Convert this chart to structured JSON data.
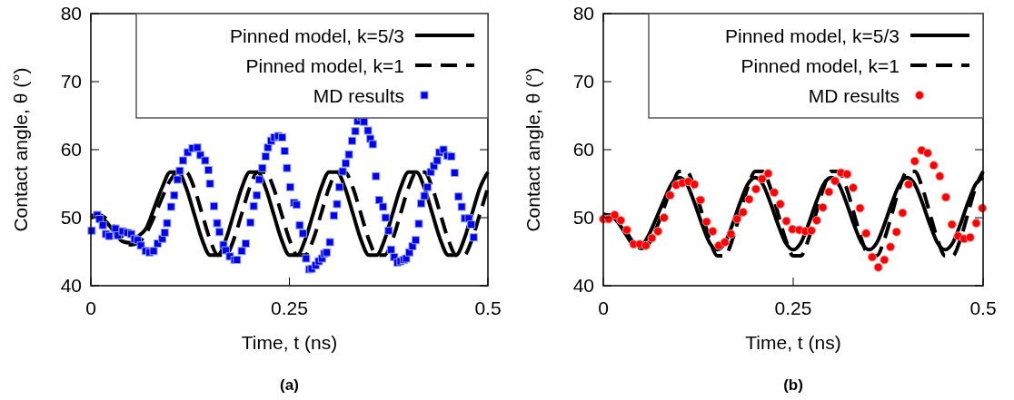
{
  "chart_data": [
    {
      "type": "line",
      "xlabel": "Time, t (ns)",
      "ylabel": "Contact angle, θ (°)",
      "annotations": [
        "(a)"
      ],
      "xlim": [
        0,
        0.5
      ],
      "ylim": [
        40,
        80
      ],
      "xticks": [
        0,
        0.25,
        0.5
      ],
      "yticks": [
        40,
        50,
        60,
        70,
        80
      ],
      "grid": false,
      "legend": "top right",
      "series": [
        {
          "name": "Pinned model, k=5/3",
          "type": "line",
          "line_style": "solid",
          "marker": "none",
          "color": "#000000",
          "x": [
            0,
            0.01,
            0.02,
            0.03,
            0.04,
            0.05,
            0.06,
            0.07,
            0.08,
            0.09,
            0.1,
            0.11,
            0.12,
            0.13,
            0.14,
            0.15,
            0.16,
            0.17,
            0.18,
            0.19,
            0.2,
            0.21,
            0.22,
            0.23,
            0.24,
            0.25,
            0.26,
            0.27,
            0.28,
            0.29,
            0.3,
            0.31,
            0.32,
            0.33,
            0.34,
            0.35,
            0.36,
            0.37,
            0.38,
            0.39,
            0.4,
            0.41,
            0.42,
            0.43,
            0.44,
            0.45,
            0.46,
            0.47,
            0.48,
            0.49,
            0.5
          ],
          "values": [
            50.0,
            50.2,
            49.3,
            47.8,
            46.5,
            46.3,
            47.3,
            48.5,
            51.5,
            54.5,
            56.7,
            56.7,
            54.4,
            50.6,
            46.8,
            44.5,
            44.5,
            46.8,
            50.6,
            54.4,
            56.7,
            56.7,
            54.4,
            50.6,
            46.8,
            44.5,
            44.5,
            46.8,
            50.6,
            54.4,
            56.7,
            56.7,
            54.4,
            50.6,
            46.8,
            44.5,
            44.5,
            46.8,
            50.6,
            54.4,
            56.7,
            56.7,
            54.4,
            50.6,
            46.8,
            44.5,
            44.5,
            46.8,
            50.6,
            54.4,
            56.7
          ]
        },
        {
          "name": "Pinned model, k=1",
          "type": "line",
          "line_style": "dashed",
          "marker": "none",
          "color": "#000000",
          "x": [
            0,
            0.01,
            0.02,
            0.03,
            0.04,
            0.05,
            0.06,
            0.07,
            0.08,
            0.09,
            0.1,
            0.11,
            0.12,
            0.13,
            0.14,
            0.15,
            0.16,
            0.17,
            0.18,
            0.19,
            0.2,
            0.21,
            0.22,
            0.23,
            0.24,
            0.25,
            0.26,
            0.27,
            0.28,
            0.29,
            0.3,
            0.31,
            0.32,
            0.33,
            0.34,
            0.35,
            0.36,
            0.37,
            0.38,
            0.39,
            0.4,
            0.41,
            0.42,
            0.43,
            0.44,
            0.45,
            0.46,
            0.47,
            0.48,
            0.49,
            0.5
          ],
          "values": [
            50.3,
            50.4,
            49.8,
            48.5,
            47.0,
            46.0,
            46.3,
            47.8,
            50.2,
            53.0,
            55.5,
            56.7,
            56.7,
            54.4,
            50.6,
            46.8,
            44.5,
            44.5,
            46.8,
            50.6,
            54.4,
            56.7,
            56.7,
            54.4,
            50.6,
            46.8,
            44.5,
            44.5,
            46.8,
            50.6,
            54.4,
            56.7,
            56.7,
            54.4,
            50.6,
            46.8,
            44.5,
            44.5,
            46.8,
            50.6,
            54.4,
            56.7,
            56.7,
            54.4,
            50.6,
            46.8,
            44.5,
            44.5,
            46.8,
            50.6,
            54.4
          ]
        },
        {
          "name": "MD results",
          "type": "scatter",
          "marker": "square",
          "color": "#0000ee",
          "x": [
            0.001,
            0.008,
            0.011,
            0.015,
            0.019,
            0.023,
            0.031,
            0.034,
            0.04,
            0.046,
            0.051,
            0.055,
            0.059,
            0.063,
            0.069,
            0.074,
            0.079,
            0.084,
            0.09,
            0.093,
            0.096,
            0.101,
            0.105,
            0.109,
            0.112,
            0.116,
            0.122,
            0.128,
            0.134,
            0.138,
            0.144,
            0.148,
            0.15,
            0.155,
            0.159,
            0.162,
            0.167,
            0.17,
            0.175,
            0.181,
            0.184,
            0.19,
            0.195,
            0.201,
            0.205,
            0.209,
            0.212,
            0.216,
            0.22,
            0.223,
            0.227,
            0.231,
            0.236,
            0.241,
            0.244,
            0.247,
            0.251,
            0.256,
            0.259,
            0.263,
            0.267,
            0.271,
            0.275,
            0.278,
            0.283,
            0.287,
            0.291,
            0.294,
            0.297,
            0.301,
            0.306,
            0.31,
            0.313,
            0.317,
            0.321,
            0.325,
            0.329,
            0.333,
            0.336,
            0.34,
            0.344,
            0.349,
            0.352,
            0.355,
            0.359,
            0.363,
            0.368,
            0.371,
            0.375,
            0.378,
            0.382,
            0.386,
            0.39,
            0.394,
            0.397,
            0.401,
            0.405,
            0.409,
            0.413,
            0.416,
            0.42,
            0.424,
            0.428,
            0.432,
            0.436,
            0.439,
            0.444,
            0.449,
            0.454,
            0.458,
            0.463,
            0.467,
            0.471,
            0.476,
            0.479,
            0.482
          ],
          "values": [
            48.1,
            50.4,
            49.8,
            48.9,
            47.6,
            47.3,
            48.4,
            47.4,
            48.0,
            47.8,
            47.6,
            46.9,
            46.7,
            45.9,
            45.1,
            44.9,
            45.1,
            46.2,
            46.9,
            47.8,
            49.2,
            51.6,
            53.3,
            55.6,
            56.9,
            58.4,
            59.6,
            60.2,
            60.3,
            59.2,
            58.4,
            57.0,
            55.0,
            51.7,
            49.2,
            47.9,
            46.0,
            45.2,
            44.3,
            43.8,
            43.8,
            45.1,
            46.2,
            49.3,
            51.7,
            53.3,
            55.6,
            57.3,
            59.0,
            60.3,
            61.3,
            61.8,
            62.0,
            61.8,
            59.8,
            57.3,
            54.5,
            52.2,
            51.9,
            48.9,
            47.7,
            44.0,
            42.4,
            42.5,
            43.0,
            43.6,
            44.0,
            44.7,
            44.9,
            46.4,
            50.3,
            52.0,
            54.5,
            56.8,
            58.0,
            59.3,
            61.3,
            62.7,
            64.2,
            64.9,
            64.1,
            62.8,
            61.6,
            60.8,
            56.1,
            52.6,
            51.6,
            50.0,
            48.1,
            45.3,
            44.2,
            43.4,
            43.6,
            43.8,
            44.0,
            44.9,
            45.8,
            46.7,
            49.1,
            52.1,
            53.2,
            54.5,
            56.7,
            57.6,
            58.4,
            59.6,
            60.0,
            59.1,
            59.0,
            56.6,
            53.1,
            51.6,
            49.9,
            49.9,
            49.0,
            47.1
          ]
        }
      ]
    },
    {
      "type": "line",
      "xlabel": "Time, t (ns)",
      "ylabel": "Contact angle, θ (°)",
      "annotations": [
        "(b)"
      ],
      "xlim": [
        0,
        0.5
      ],
      "ylim": [
        40,
        80
      ],
      "xticks": [
        0,
        0.25,
        0.5
      ],
      "yticks": [
        40,
        50,
        60,
        70,
        80
      ],
      "grid": false,
      "legend": "top right",
      "series": [
        {
          "name": "Pinned model, k=5/3",
          "type": "line",
          "line_style": "solid",
          "marker": "none",
          "color": "#000000",
          "x": [
            0,
            0.01,
            0.02,
            0.03,
            0.04,
            0.05,
            0.06,
            0.07,
            0.08,
            0.09,
            0.1,
            0.11,
            0.12,
            0.13,
            0.14,
            0.15,
            0.16,
            0.17,
            0.18,
            0.19,
            0.2,
            0.21,
            0.22,
            0.23,
            0.24,
            0.25,
            0.26,
            0.27,
            0.28,
            0.29,
            0.3,
            0.31,
            0.32,
            0.33,
            0.34,
            0.35,
            0.36,
            0.37,
            0.38,
            0.39,
            0.4,
            0.41,
            0.42,
            0.43,
            0.44,
            0.45,
            0.46,
            0.47,
            0.48,
            0.49,
            0.5
          ],
          "values": [
            50.5,
            50.3,
            49.2,
            47.5,
            46.0,
            46.0,
            47.5,
            50.0,
            52.6,
            55.0,
            55.9,
            54.9,
            52.2,
            49.0,
            46.3,
            45.3,
            46.3,
            49.0,
            52.2,
            54.9,
            55.9,
            54.9,
            52.2,
            49.0,
            46.3,
            45.3,
            46.3,
            49.0,
            52.2,
            54.9,
            55.9,
            54.9,
            52.2,
            49.0,
            46.3,
            45.3,
            46.3,
            49.0,
            52.2,
            54.9,
            55.9,
            54.9,
            52.2,
            49.0,
            46.3,
            45.3,
            46.3,
            49.0,
            52.2,
            54.9,
            55.9
          ]
        },
        {
          "name": "Pinned model, k=1",
          "type": "line",
          "line_style": "dashed",
          "marker": "none",
          "color": "#000000",
          "x": [
            0,
            0.01,
            0.02,
            0.03,
            0.04,
            0.05,
            0.06,
            0.07,
            0.08,
            0.09,
            0.1,
            0.11,
            0.12,
            0.13,
            0.14,
            0.15,
            0.16,
            0.17,
            0.18,
            0.19,
            0.2,
            0.21,
            0.22,
            0.23,
            0.24,
            0.25,
            0.26,
            0.27,
            0.28,
            0.29,
            0.3,
            0.31,
            0.32,
            0.33,
            0.34,
            0.35,
            0.36,
            0.37,
            0.38,
            0.39,
            0.4,
            0.41,
            0.42,
            0.43,
            0.44,
            0.45,
            0.46,
            0.47,
            0.48,
            0.49,
            0.5
          ],
          "values": [
            50.3,
            50.4,
            49.6,
            48.0,
            46.3,
            45.5,
            46.2,
            48.5,
            51.5,
            54.5,
            56.8,
            56.8,
            54.4,
            50.6,
            46.8,
            44.4,
            44.4,
            46.8,
            50.6,
            54.4,
            56.8,
            56.8,
            54.4,
            50.6,
            46.8,
            44.4,
            44.4,
            46.8,
            50.6,
            54.4,
            56.8,
            56.8,
            54.4,
            50.6,
            46.8,
            44.4,
            44.4,
            46.8,
            50.6,
            54.4,
            56.8,
            56.8,
            54.4,
            50.6,
            46.8,
            44.4,
            44.4,
            46.8,
            50.6,
            54.4,
            56.8
          ]
        },
        {
          "name": "MD results",
          "type": "scatter",
          "marker": "circle",
          "color": "#ff0000",
          "x": [
            0,
            0.007,
            0.015,
            0.023,
            0.031,
            0.04,
            0.048,
            0.056,
            0.064,
            0.072,
            0.08,
            0.088,
            0.096,
            0.104,
            0.112,
            0.12,
            0.128,
            0.136,
            0.144,
            0.152,
            0.16,
            0.168,
            0.176,
            0.184,
            0.192,
            0.201,
            0.209,
            0.217,
            0.225,
            0.233,
            0.241,
            0.249,
            0.258,
            0.266,
            0.274,
            0.281,
            0.289,
            0.297,
            0.305,
            0.313,
            0.321,
            0.329,
            0.338,
            0.346,
            0.354,
            0.362,
            0.37,
            0.378,
            0.386,
            0.394,
            0.402,
            0.41,
            0.419,
            0.427,
            0.435,
            0.443,
            0.451,
            0.459,
            0.467,
            0.475,
            0.483,
            0.491,
            0.499
          ],
          "values": [
            49.8,
            49.8,
            50.4,
            49.6,
            48.2,
            46.1,
            46.1,
            45.9,
            47.0,
            48.0,
            50.0,
            53.3,
            54.8,
            55.1,
            55.3,
            54.9,
            52.6,
            49.4,
            48.0,
            45.9,
            46.4,
            47.6,
            49.8,
            50.8,
            52.7,
            54.2,
            55.7,
            56.5,
            53.7,
            52.0,
            49.5,
            48.3,
            48.2,
            48.0,
            48.1,
            49.6,
            51.5,
            53.8,
            55.4,
            56.6,
            56.4,
            54.4,
            51.4,
            47.7,
            44.2,
            42.7,
            43.8,
            45.7,
            47.9,
            50.7,
            54.9,
            58.3,
            59.9,
            59.5,
            57.7,
            56.1,
            53.0,
            49.0,
            47.3,
            46.9,
            47.1,
            49.2,
            51.4
          ]
        }
      ]
    }
  ]
}
